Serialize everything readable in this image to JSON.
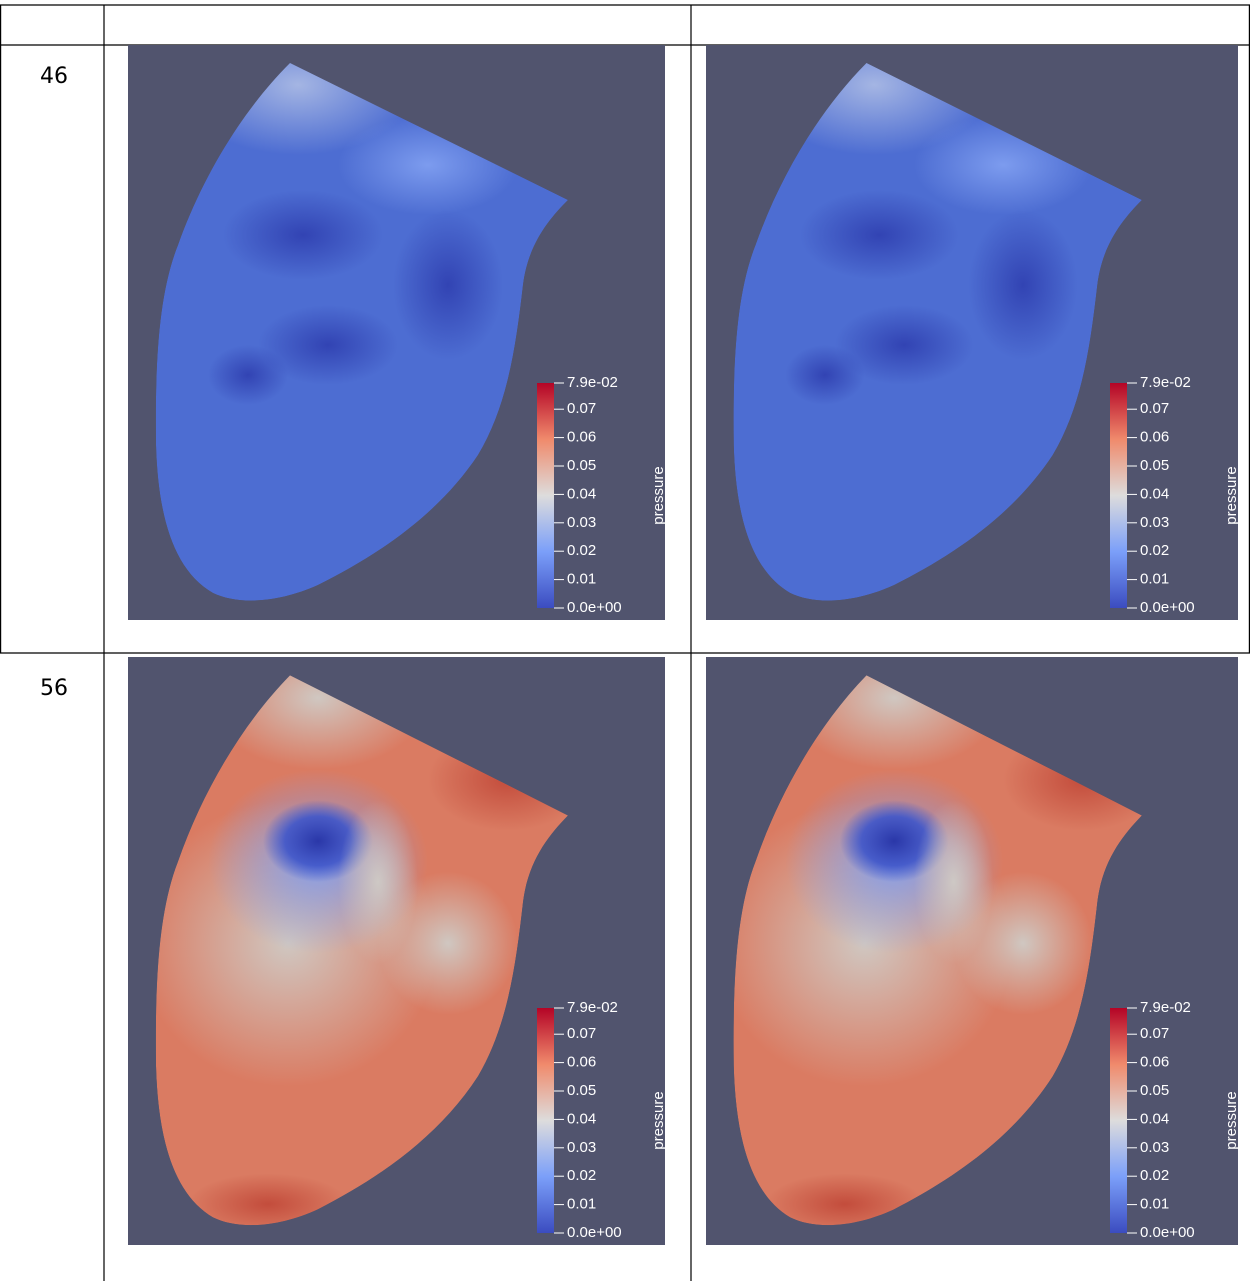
{
  "table": {
    "rows": [
      {
        "label": "46",
        "panels": [
          {
            "colorbar": {
              "title": "pressure",
              "labels": [
                "7.9e-02",
                "0.07",
                "0.06",
                "0.05",
                "0.04",
                "0.03",
                "0.02",
                "0.01",
                "0.0e+00"
              ]
            }
          },
          {
            "colorbar": {
              "title": "pressure",
              "labels": [
                "7.9e-02",
                "0.07",
                "0.06",
                "0.05",
                "0.04",
                "0.03",
                "0.02",
                "0.01",
                "0.0e+00"
              ]
            }
          }
        ]
      },
      {
        "label": "56",
        "panels": [
          {
            "colorbar": {
              "title": "pressure",
              "labels": [
                "7.9e-02",
                "0.07",
                "0.06",
                "0.05",
                "0.04",
                "0.03",
                "0.02",
                "0.01",
                "0.0e+00"
              ]
            }
          },
          {
            "colorbar": {
              "title": "pressure",
              "labels": [
                "7.9e-02",
                "0.07",
                "0.06",
                "0.05",
                "0.04",
                "0.03",
                "0.02",
                "0.01",
                "0.0e+00"
              ]
            }
          }
        ]
      }
    ]
  }
}
